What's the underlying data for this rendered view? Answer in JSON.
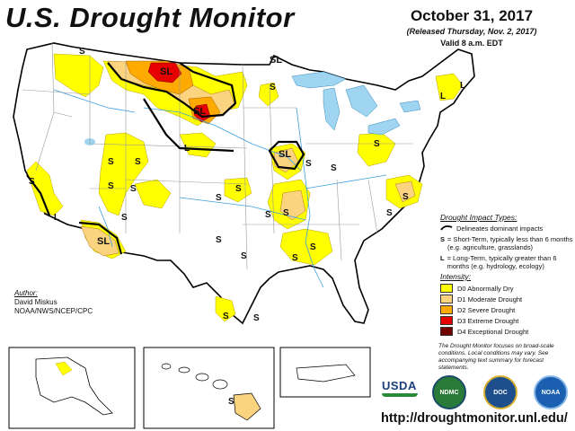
{
  "title": "U.S. Drought Monitor",
  "date": "October 31, 2017",
  "released": "(Released Thursday, Nov. 2, 2017)",
  "valid": "Valid 8 a.m. EDT",
  "impact": {
    "header": "Drought Impact Types:",
    "delineates": "Delineates dominant impacts",
    "short_term_code": "S",
    "short_term_text": "= Short-Term, typically less than 6 months (e.g. agriculture, grasslands)",
    "long_term_code": "L",
    "long_term_text": "= Long-Term, typically greater than 6 months (e.g. hydrology, ecology)"
  },
  "intensity": {
    "header": "Intensity:",
    "items": [
      {
        "label": "D0 Abnormally Dry",
        "color": "#ffff00"
      },
      {
        "label": "D1 Moderate Drought",
        "color": "#fcd37f"
      },
      {
        "label": "D2 Severe Drought",
        "color": "#ffaa00"
      },
      {
        "label": "D3 Extreme Drought",
        "color": "#e60000"
      },
      {
        "label": "D4 Exceptional Drought",
        "color": "#730000"
      }
    ]
  },
  "author": {
    "header": "Author:",
    "name": "David Miskus",
    "org": "NOAA/NWS/NCEP/CPC"
  },
  "note": "The Drought Monitor focuses on broad-scale conditions. Local conditions may vary. See accompanying text summary for forecast statements.",
  "url": "http://droughtmonitor.unl.edu/",
  "logos": {
    "usda": "USDA",
    "ndmc": "NDMC",
    "commerce": "DOC",
    "noaa": "NOAA"
  },
  "map_labels": {
    "sl": "SL",
    "s": "S",
    "l": "L"
  },
  "colors": {
    "water": "#9fd5f0",
    "state_line": "#9a9a9a",
    "border": "#000000",
    "river": "#3aa0e0"
  }
}
